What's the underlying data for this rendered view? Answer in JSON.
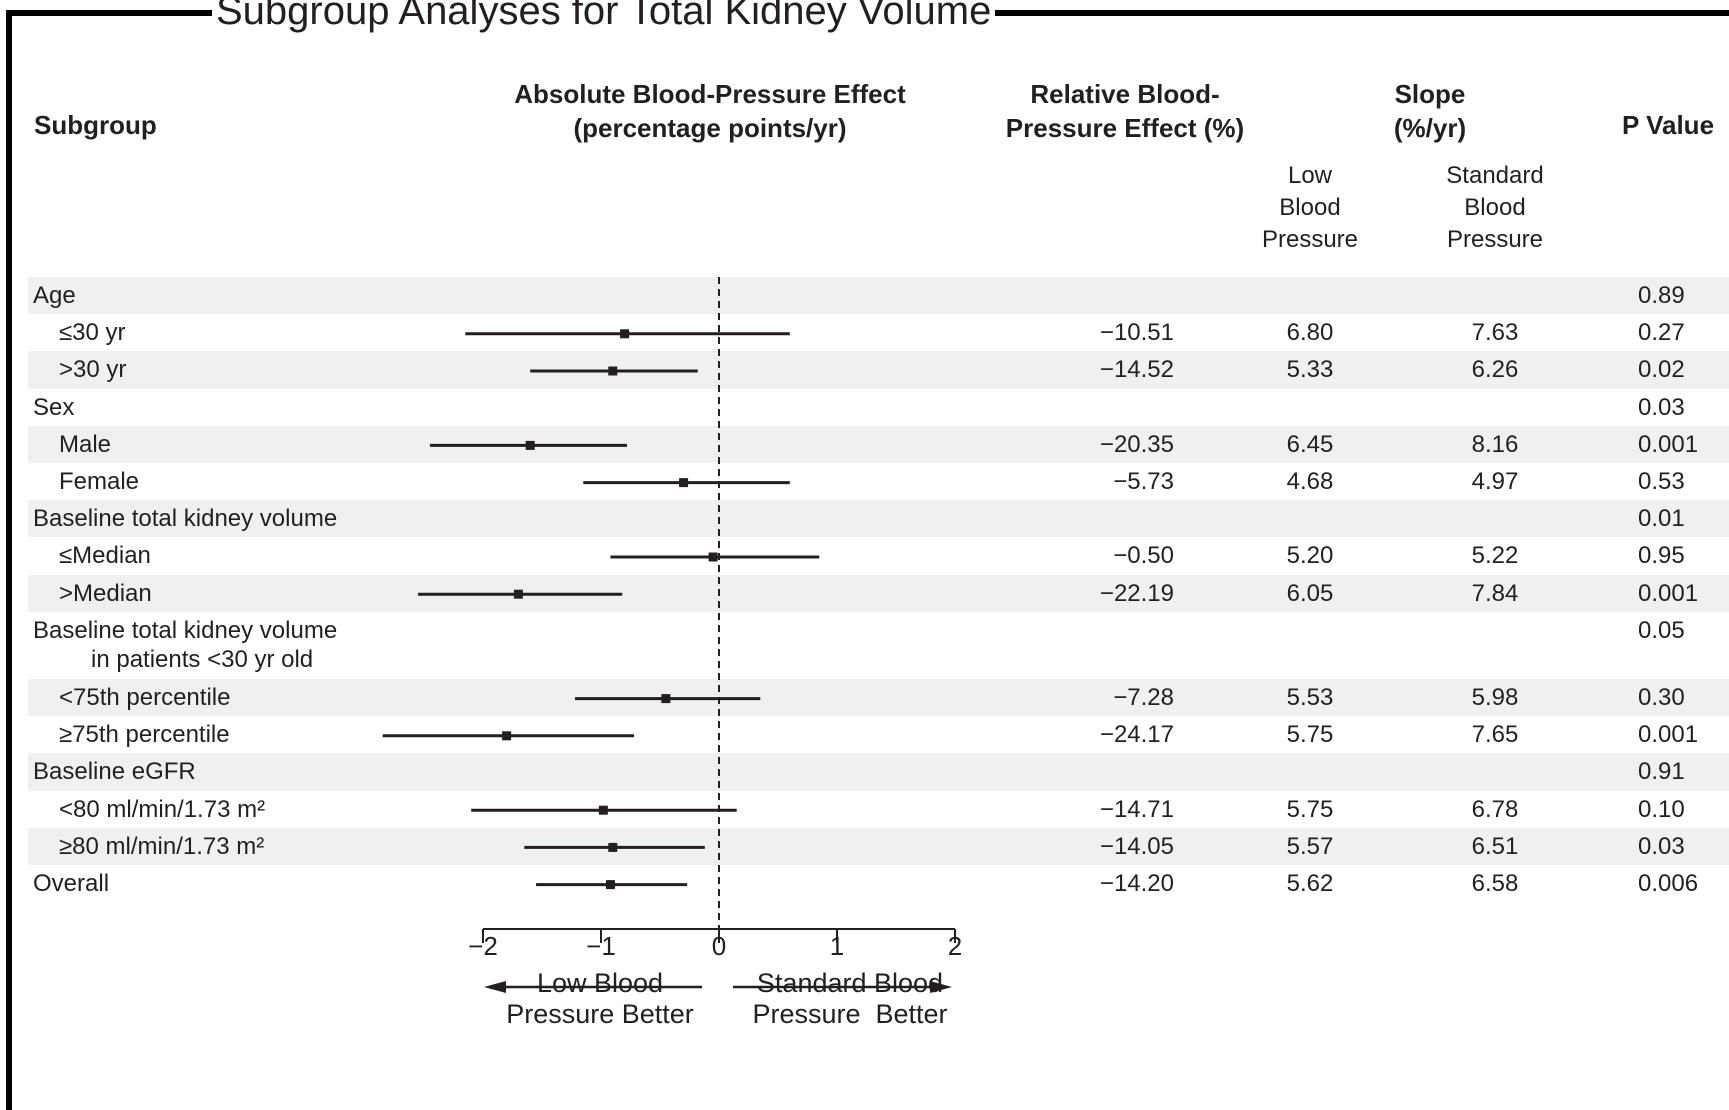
{
  "title": "Subgroup Analyses for Total Kidney Volume",
  "headers": {
    "subgroup": "Subgroup",
    "absolute": [
      "Absolute Blood-Pressure Effect",
      "(percentage points/yr)"
    ],
    "relative": [
      "Relative Blood-",
      "Pressure Effect (%)"
    ],
    "slope": [
      "Slope",
      "(%/yr)"
    ],
    "slope_low": [
      "Low",
      "Blood",
      "Pressure"
    ],
    "slope_standard": [
      "Standard",
      "Blood",
      "Pressure"
    ],
    "pvalue": "P Value"
  },
  "rows": [
    {
      "label": "Age",
      "indent": false,
      "shaded": true,
      "relative": "",
      "low": "",
      "standard": "",
      "p": "0.89"
    },
    {
      "label": "≤30 yr",
      "indent": true,
      "shaded": false,
      "relative": "−10.51",
      "low": "6.80",
      "standard": "7.63",
      "p": "0.27"
    },
    {
      "label": ">30 yr",
      "indent": true,
      "shaded": true,
      "relative": "−14.52",
      "low": "5.33",
      "standard": "6.26",
      "p": "0.02"
    },
    {
      "label": "Sex",
      "indent": false,
      "shaded": false,
      "relative": "",
      "low": "",
      "standard": "",
      "p": "0.03"
    },
    {
      "label": "Male",
      "indent": true,
      "shaded": true,
      "relative": "−20.35",
      "low": "6.45",
      "standard": "8.16",
      "p": "0.001"
    },
    {
      "label": "Female",
      "indent": true,
      "shaded": false,
      "relative": "−5.73",
      "low": "4.68",
      "standard": "4.97",
      "p": "0.53"
    },
    {
      "label": "Baseline total kidney volume",
      "indent": false,
      "shaded": true,
      "relative": "",
      "low": "",
      "standard": "",
      "p": "0.01"
    },
    {
      "label": "≤Median",
      "indent": true,
      "shaded": false,
      "relative": "−0.50",
      "low": "5.20",
      "standard": "5.22",
      "p": "0.95"
    },
    {
      "label": ">Median",
      "indent": true,
      "shaded": true,
      "relative": "−22.19",
      "low": "6.05",
      "standard": "7.84",
      "p": "0.001"
    },
    {
      "label": "Baseline total kidney volume",
      "label2": "in patients <30 yr old",
      "indent": false,
      "shaded": false,
      "relative": "",
      "low": "",
      "standard": "",
      "p": "0.05"
    },
    {
      "label": "<75th percentile",
      "indent": true,
      "shaded": true,
      "relative": "−7.28",
      "low": "5.53",
      "standard": "5.98",
      "p": "0.30"
    },
    {
      "label": "≥75th percentile",
      "indent": true,
      "shaded": false,
      "relative": "−24.17",
      "low": "5.75",
      "standard": "7.65",
      "p": "0.001"
    },
    {
      "label": "Baseline eGFR",
      "indent": false,
      "shaded": true,
      "relative": "",
      "low": "",
      "standard": "",
      "p": "0.91"
    },
    {
      "label": "<80 ml/min/1.73 m²",
      "indent": true,
      "shaded": false,
      "relative": "−14.71",
      "low": "5.75",
      "standard": "6.78",
      "p": "0.10"
    },
    {
      "label": "≥80 ml/min/1.73 m²",
      "indent": true,
      "shaded": true,
      "relative": "−14.05",
      "low": "5.57",
      "standard": "6.51",
      "p": "0.03"
    },
    {
      "label": "Overall",
      "indent": false,
      "shaded": false,
      "relative": "−14.20",
      "low": "5.62",
      "standard": "6.58",
      "p": "0.006"
    }
  ],
  "arrows": {
    "left": [
      "Low Blood",
      "Pressure Better"
    ],
    "right": [
      "Standard Blood",
      "Pressure  Better"
    ]
  },
  "chart_data": {
    "type": "forest",
    "x_axis": {
      "ticks": [
        -2,
        -1,
        0,
        1,
        2
      ],
      "tick_labels": [
        "−2",
        "−1",
        "0",
        "1",
        "2"
      ],
      "range": [
        -2,
        2
      ],
      "reference_line": 0
    },
    "series": [
      {
        "row": 1,
        "estimate": -0.8,
        "lower": -2.15,
        "upper": 0.6
      },
      {
        "row": 2,
        "estimate": -0.9,
        "lower": -1.6,
        "upper": -0.18
      },
      {
        "row": 4,
        "estimate": -1.6,
        "lower": -2.45,
        "upper": -0.78
      },
      {
        "row": 5,
        "estimate": -0.3,
        "lower": -1.15,
        "upper": 0.6
      },
      {
        "row": 7,
        "estimate": -0.05,
        "lower": -0.92,
        "upper": 0.85
      },
      {
        "row": 8,
        "estimate": -1.7,
        "lower": -2.55,
        "upper": -0.82
      },
      {
        "row": 10,
        "estimate": -0.45,
        "lower": -1.22,
        "upper": 0.35
      },
      {
        "row": 11,
        "estimate": -1.8,
        "lower": -2.85,
        "upper": -0.72
      },
      {
        "row": 13,
        "estimate": -0.98,
        "lower": -2.1,
        "upper": 0.15
      },
      {
        "row": 14,
        "estimate": -0.9,
        "lower": -1.65,
        "upper": -0.12
      },
      {
        "row": 15,
        "estimate": -0.92,
        "lower": -1.55,
        "upper": -0.27
      }
    ]
  }
}
